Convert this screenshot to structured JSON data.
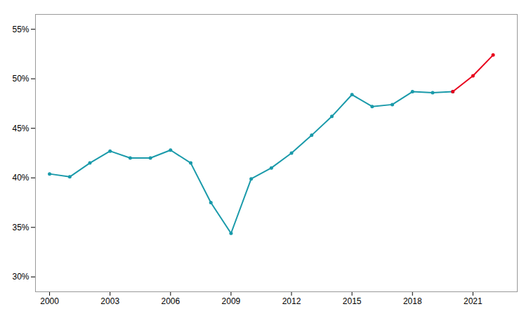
{
  "chart_data": {
    "type": "line",
    "x": [
      2000,
      2001,
      2002,
      2003,
      2004,
      2005,
      2006,
      2007,
      2008,
      2009,
      2010,
      2011,
      2012,
      2013,
      2014,
      2015,
      2016,
      2017,
      2018,
      2019,
      2020,
      2021,
      2022
    ],
    "series": [
      {
        "color": "#1a9aaa",
        "values": [
          0.404,
          0.401,
          0.415,
          0.427,
          0.42,
          0.42,
          0.428,
          0.415,
          0.375,
          0.344,
          0.399,
          0.41,
          0.425,
          0.443,
          0.462,
          0.484,
          0.472,
          0.474,
          0.487,
          0.486,
          0.487,
          null,
          null
        ]
      },
      {
        "color": "#e8001c",
        "values": [
          null,
          null,
          null,
          null,
          null,
          null,
          null,
          null,
          null,
          null,
          null,
          null,
          null,
          null,
          null,
          null,
          null,
          null,
          null,
          null,
          0.487,
          0.503,
          0.524
        ]
      }
    ],
    "marker": "circle",
    "xlim": [
      1999.3,
      2023.2
    ],
    "xticks": [
      2000,
      2003,
      2006,
      2009,
      2012,
      2015,
      2018,
      2021
    ],
    "ylim": [
      0.285,
      0.565
    ],
    "yticks": [
      {
        "value": 0.3,
        "label": "30%"
      },
      {
        "value": 0.35,
        "label": "35%"
      },
      {
        "value": 0.4,
        "label": "40%"
      },
      {
        "value": 0.45,
        "label": "45%"
      },
      {
        "value": 0.5,
        "label": "50%"
      },
      {
        "value": 0.55,
        "label": "55%"
      }
    ],
    "grid": false
  }
}
